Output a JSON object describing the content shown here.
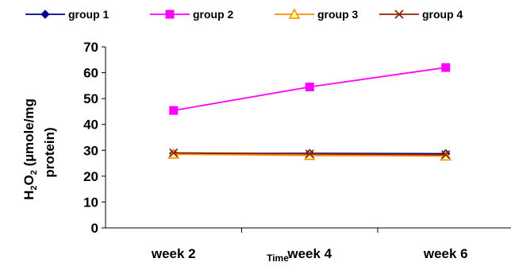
{
  "chart_data": {
    "type": "line",
    "categories": [
      "week 2",
      "week 4",
      "week 6"
    ],
    "series": [
      {
        "name": "group 1",
        "values": [
          28.8,
          28.8,
          28.7
        ],
        "color": "#00008B",
        "marker": "diamond"
      },
      {
        "name": "group 2",
        "values": [
          45.4,
          54.5,
          62.0
        ],
        "color": "#FF00FF",
        "marker": "square"
      },
      {
        "name": "group 3",
        "values": [
          28.5,
          28.0,
          27.8
        ],
        "color": "#FF8C00",
        "marker": "triangle"
      },
      {
        "name": "group 4",
        "values": [
          29.0,
          28.6,
          28.3
        ],
        "color": "#8B2500",
        "marker": "x"
      }
    ],
    "xlabel": "Time",
    "ylabel_parts": [
      "H",
      "2",
      "O",
      "2",
      " (µmole/mg",
      "protein)"
    ],
    "ylim": [
      0,
      70
    ],
    "yticks": [
      "0",
      "10",
      "20",
      "30",
      "40",
      "50",
      "60",
      "70"
    ],
    "grid": false,
    "legend_position": "top"
  }
}
